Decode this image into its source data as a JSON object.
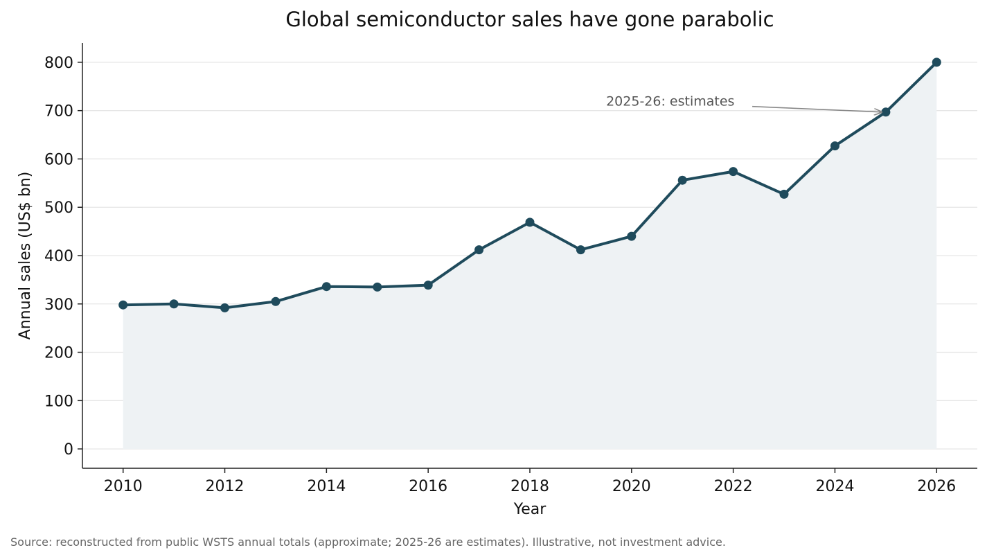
{
  "chart_data": {
    "type": "line",
    "title": "Global semiconductor sales have gone parabolic",
    "xlabel": "Year",
    "ylabel": "Annual sales (US$ bn)",
    "x": [
      2010,
      2011,
      2012,
      2013,
      2014,
      2015,
      2016,
      2017,
      2018,
      2019,
      2020,
      2021,
      2022,
      2023,
      2024,
      2025,
      2026
    ],
    "series": [
      {
        "values": [
          298,
          300,
          292,
          305,
          336,
          335,
          339,
          412,
          469,
          412,
          440,
          556,
          574,
          527,
          627,
          697,
          800
        ]
      }
    ],
    "xlim": [
      2009.2,
      2026.8
    ],
    "ylim": [
      -40,
      840
    ],
    "xticks": [
      2010,
      2012,
      2014,
      2016,
      2018,
      2020,
      2022,
      2024,
      2026
    ],
    "yticks": [
      0,
      100,
      200,
      300,
      400,
      500,
      600,
      700,
      800
    ],
    "grid": "horizontal",
    "fill_under_line": true,
    "annotation": {
      "text": "2025-26: estimates",
      "target_x": 2025,
      "target_y": 697,
      "text_x": 2019.5,
      "text_y": 720
    },
    "colors": {
      "line": "#1f4b5c",
      "fill": "#eef2f4",
      "arrow": "#888888"
    }
  },
  "source_note": "Source: reconstructed from public WSTS annual totals (approximate; 2025-26 are estimates). Illustrative, not investment advice."
}
